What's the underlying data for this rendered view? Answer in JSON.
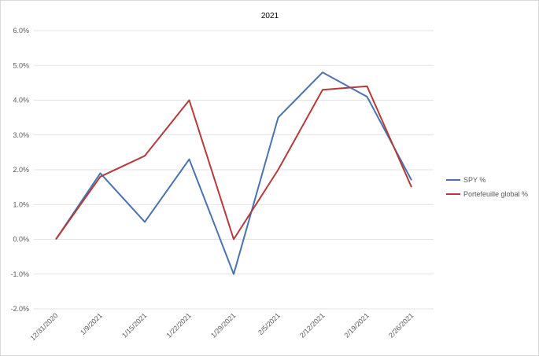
{
  "chart_data": {
    "type": "line",
    "title": "2021",
    "xlabel": "",
    "ylabel": "",
    "categories": [
      "12/31/2020",
      "1/9/2021",
      "1/15/2021",
      "1/22/2021",
      "1/29/2021",
      "2/5/2021",
      "2/12/2021",
      "2/19/2021",
      "2/26/2021"
    ],
    "ylim": [
      -0.02,
      0.06
    ],
    "yticks": [
      "-2.0%",
      "-1.0%",
      "0.0%",
      "1.0%",
      "2.0%",
      "3.0%",
      "4.0%",
      "5.0%",
      "6.0%"
    ],
    "grid": true,
    "legend_position": "right",
    "series": [
      {
        "name": "SPY %",
        "color": "#4a72b0",
        "values": [
          0.0,
          0.019,
          0.005,
          0.023,
          -0.01,
          0.035,
          0.048,
          0.041,
          0.017
        ]
      },
      {
        "name": "Portefeuille global %",
        "color": "#b33b3b",
        "values": [
          0.0,
          0.018,
          0.024,
          0.04,
          0.0,
          0.02,
          0.043,
          0.044,
          0.015
        ]
      }
    ]
  }
}
